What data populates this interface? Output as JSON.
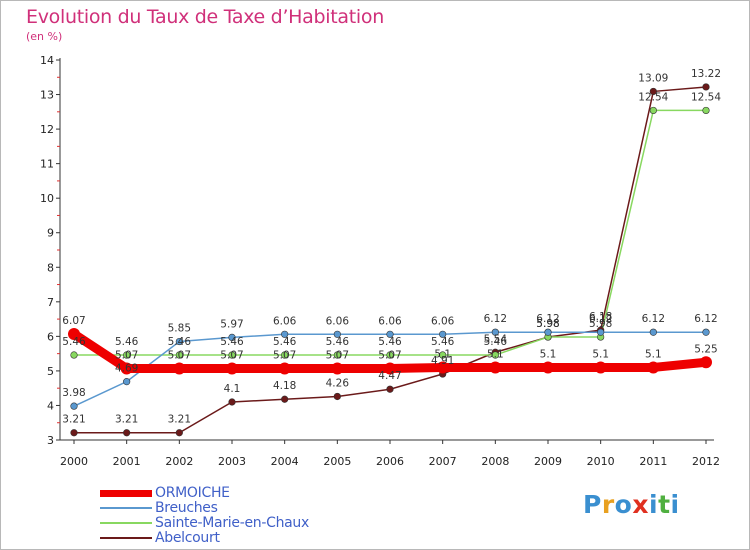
{
  "header": {
    "title": "Evolution du Taux de Taxe d’Habitation",
    "unit": "(en %)"
  },
  "logo": {
    "letters": [
      "P",
      "r",
      "o",
      "x",
      "i",
      "t",
      "i"
    ],
    "colors": [
      "#3a8fd0",
      "#e8a020",
      "#3a8fd0",
      "#e03020",
      "#3a8fd0",
      "#50b040",
      "#3a8fd0"
    ]
  },
  "chart_data": {
    "type": "line",
    "title": "Evolution du Taux de Taxe d’Habitation",
    "ylabel": "(en %)",
    "xlabel": "",
    "categories": [
      "2000",
      "2001",
      "2002",
      "2003",
      "2004",
      "2005",
      "2006",
      "2007",
      "2008",
      "2009",
      "2010",
      "2011",
      "2012"
    ],
    "yticks": [
      3,
      4,
      5,
      6,
      7,
      8,
      9,
      10,
      11,
      12,
      13,
      14
    ],
    "ylim": [
      3,
      14
    ],
    "grid": false,
    "series": [
      {
        "name": "Abelcourt",
        "color": "#6b1a1a",
        "width": 1.5,
        "values": [
          3.21,
          3.21,
          3.21,
          4.1,
          4.18,
          4.26,
          4.47,
          4.91,
          5.54,
          5.98,
          6.18,
          13.09,
          13.22
        ],
        "labels": [
          "3.21",
          "3.21",
          "3.21",
          "4.1",
          "4.18",
          "4.26",
          "4.47",
          "4.91",
          "5.54",
          "5.98",
          "6.18",
          "13.09",
          "13.22"
        ]
      },
      {
        "name": "Sainte-Marie-en-Chaux",
        "color": "#88d860",
        "width": 1.5,
        "values": [
          5.46,
          5.46,
          5.46,
          5.46,
          5.46,
          5.46,
          5.46,
          5.46,
          5.46,
          5.98,
          5.98,
          12.54,
          12.54
        ],
        "labels": [
          "5.46",
          "5.46",
          "5.46",
          "5.46",
          "5.46",
          "5.46",
          "5.46",
          "5.46",
          "5.46",
          "5.98",
          "5.98",
          "12.54",
          "12.54"
        ]
      },
      {
        "name": "Breuches",
        "color": "#5a98cf",
        "width": 1.5,
        "values": [
          3.98,
          4.69,
          5.85,
          5.97,
          6.06,
          6.06,
          6.06,
          6.06,
          6.12,
          6.12,
          6.12,
          6.12,
          6.12
        ],
        "labels": [
          "3.98",
          "4.69",
          "5.85",
          "5.97",
          "6.06",
          "6.06",
          "6.06",
          "6.06",
          "6.12",
          "6.12",
          "6.12",
          "6.12",
          "6.12"
        ]
      },
      {
        "name": "ORMOICHE",
        "color": "#ee0000",
        "width": 9,
        "values": [
          6.07,
          5.07,
          5.07,
          5.07,
          5.07,
          5.07,
          5.07,
          5.1,
          5.1,
          5.1,
          5.1,
          5.1,
          5.25
        ],
        "labels": [
          "6.07",
          "5.07",
          "5.07",
          "5.07",
          "5.07",
          "5.07",
          "5.07",
          "5.1",
          "5.1",
          "5.1",
          "5.1",
          "5.1",
          "5.25"
        ]
      }
    ],
    "legend_position": "bottom-left",
    "legend": [
      {
        "name": "ORMOICHE",
        "color": "#ee0000",
        "text_color": "#4060c8"
      },
      {
        "name": "Breuches",
        "color": "#5a98cf",
        "text_color": "#4060c8"
      },
      {
        "name": "Sainte-Marie-en-Chaux",
        "color": "#88d860",
        "text_color": "#4060c8"
      },
      {
        "name": "Abelcourt",
        "color": "#6b1a1a",
        "text_color": "#4060c8"
      }
    ]
  }
}
